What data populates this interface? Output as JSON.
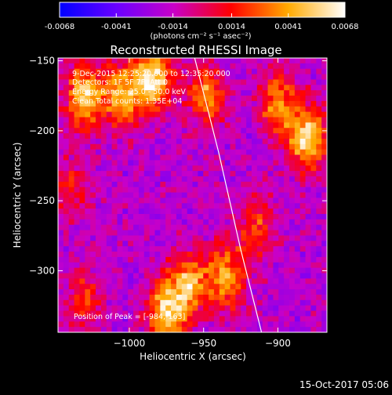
{
  "colorbar": {
    "tick_labels": [
      "-0.0068",
      "-0.0041",
      "-0.0014",
      "0.0014",
      "0.0041",
      "0.0068"
    ],
    "ticks": [
      -0.0068,
      -0.0041,
      -0.0014,
      0.0014,
      0.0041,
      0.0068
    ],
    "range": [
      -0.0068,
      0.0068
    ],
    "unit_label": "(photons cm⁻² s⁻¹ asec⁻²)",
    "colors": [
      "#0000ff",
      "#6a00ff",
      "#c800c8",
      "#ff0000",
      "#ffaa00",
      "#ffffff"
    ]
  },
  "chart_data": {
    "type": "heatmap",
    "title": "Reconstructed RHESSI Image",
    "xlabel": "Heliocentric X (arcsec)",
    "ylabel": "Heliocentric Y (arcsec)",
    "xlim": [
      -1048,
      -867
    ],
    "ylim": [
      -344,
      -148
    ],
    "xticks": [
      -1000,
      -950,
      -900
    ],
    "xtick_labels": [
      "−1000",
      "−950",
      "−900"
    ],
    "yticks": [
      -150,
      -200,
      -250,
      -300
    ],
    "ytick_labels": [
      "−150",
      "−200",
      "−250",
      "−300"
    ],
    "grid": false,
    "annotations": [
      "9-Dec-2015 12:25:20.000 to 12:35:20.000",
      "Detectors: 1F 5F 7F, Att 0",
      "Energy Range: 25.0 - 50.0 keV",
      "Clean    Total counts: 1.35E+04"
    ],
    "peak_label": "Position of Peak = [-984,-163]",
    "peak": [
      -984,
      -163
    ],
    "limb_curve": {
      "x": [
        -956,
        -940,
        -925,
        -911
      ],
      "y": [
        -148,
        -215,
        -285,
        -344
      ]
    },
    "value_range": [
      -0.0068,
      0.0068
    ],
    "bright_sources": [
      {
        "x": -1030,
        "y": -175,
        "intensity": 0.9
      },
      {
        "x": -1005,
        "y": -175,
        "intensity": 0.75
      },
      {
        "x": -984,
        "y": -163,
        "intensity": 1.0
      },
      {
        "x": -948,
        "y": -175,
        "intensity": 0.7
      },
      {
        "x": -900,
        "y": -180,
        "intensity": 0.7
      },
      {
        "x": -880,
        "y": -205,
        "intensity": 0.95
      },
      {
        "x": -960,
        "y": -310,
        "intensity": 0.8
      },
      {
        "x": -935,
        "y": -305,
        "intensity": 0.75
      },
      {
        "x": -975,
        "y": -330,
        "intensity": 0.9
      },
      {
        "x": -1030,
        "y": -320,
        "intensity": 0.45
      },
      {
        "x": -915,
        "y": -270,
        "intensity": 0.5
      },
      {
        "x": -1040,
        "y": -240,
        "intensity": 0.35
      }
    ]
  },
  "timestamp": "15-Oct-2017 05:06"
}
